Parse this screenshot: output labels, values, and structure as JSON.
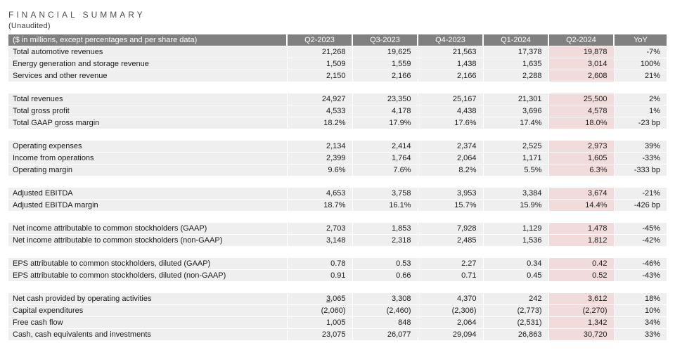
{
  "title": "FINANCIAL SUMMARY",
  "subtitle": "(Unaudited)",
  "colors": {
    "header_bg": "#808080",
    "header_text": "#ffffff",
    "row_bg": "#efefef",
    "highlight_bg": "#f2dcdb",
    "title_text": "#4f4f4f",
    "body_text": "#1a1a1a"
  },
  "table": {
    "label_header": "($ in millions, except percentages and per share data)",
    "columns": [
      "Q2-2023",
      "Q3-2023",
      "Q4-2023",
      "Q1-2024",
      "Q2-2024",
      "YoY"
    ],
    "highlight_column": "Q2-2024",
    "sections": [
      {
        "rows": [
          {
            "label": "Total automotive revenues",
            "values": [
              "21,268",
              "19,625",
              "21,563",
              "17,378",
              "19,878",
              "-7%"
            ]
          },
          {
            "label": "Energy generation and storage revenue",
            "values": [
              "1,509",
              "1,559",
              "1,438",
              "1,635",
              "3,014",
              "100%"
            ]
          },
          {
            "label": "Services and other revenue",
            "values": [
              "2,150",
              "2,166",
              "2,166",
              "2,288",
              "2,608",
              "21%"
            ]
          }
        ]
      },
      {
        "rows": [
          {
            "label": "Total revenues",
            "values": [
              "24,927",
              "23,350",
              "25,167",
              "21,301",
              "25,500",
              "2%"
            ]
          },
          {
            "label": "Total gross profit",
            "values": [
              "4,533",
              "4,178",
              "4,438",
              "3,696",
              "4,578",
              "1%"
            ]
          },
          {
            "label": "Total GAAP gross margin",
            "values": [
              "18.2%",
              "17.9%",
              "17.6%",
              "17.4%",
              "18.0%",
              "-23 bp"
            ]
          }
        ]
      },
      {
        "rows": [
          {
            "label": "Operating expenses",
            "values": [
              "2,134",
              "2,414",
              "2,374",
              "2,525",
              "2,973",
              "39%"
            ]
          },
          {
            "label": "Income from operations",
            "values": [
              "2,399",
              "1,764",
              "2,064",
              "1,171",
              "1,605",
              "-33%"
            ]
          },
          {
            "label": "Operating margin",
            "values": [
              "9.6%",
              "7.6%",
              "8.2%",
              "5.5%",
              "6.3%",
              "-333 bp"
            ]
          }
        ]
      },
      {
        "rows": [
          {
            "label": "Adjusted EBITDA",
            "values": [
              "4,653",
              "3,758",
              "3,953",
              "3,384",
              "3,674",
              "-21%"
            ]
          },
          {
            "label": "Adjusted EBITDA margin",
            "values": [
              "18.7%",
              "16.1%",
              "15.7%",
              "15.9%",
              "14.4%",
              "-426 bp"
            ]
          }
        ]
      },
      {
        "rows": [
          {
            "label": "Net income attributable to common stockholders (GAAP)",
            "values": [
              "2,703",
              "1,853",
              "7,928",
              "1,129",
              "1,478",
              "-45%"
            ]
          },
          {
            "label": "Net income attributable to common stockholders (non-GAAP)",
            "values": [
              "3,148",
              "2,318",
              "2,485",
              "1,536",
              "1,812",
              "-42%"
            ]
          }
        ]
      },
      {
        "rows": [
          {
            "label": "EPS attributable to common stockholders, diluted (GAAP)",
            "values": [
              "0.78",
              "0.53",
              "2.27",
              "0.34",
              "0.42",
              "-46%"
            ]
          },
          {
            "label": "EPS attributable to common stockholders, diluted (non-GAAP)",
            "values": [
              "0.91",
              "0.66",
              "0.71",
              "0.45",
              "0.52",
              "-43%"
            ]
          }
        ]
      },
      {
        "rows": [
          {
            "label": "Net cash provided by operating activities",
            "values": [
              "3,065",
              "3,308",
              "4,370",
              "242",
              "3,612",
              "18%"
            ],
            "underline_first_char_col": 0
          },
          {
            "label": "Capital expenditures",
            "values": [
              "(2,060)",
              "(2,460)",
              "(2,306)",
              "(2,773)",
              "(2,270)",
              "10%"
            ]
          },
          {
            "label": "Free cash flow",
            "values": [
              "1,005",
              "848",
              "2,064",
              "(2,531)",
              "1,342",
              "34%"
            ]
          },
          {
            "label": "Cash, cash equivalents and investments",
            "values": [
              "23,075",
              "26,077",
              "29,094",
              "26,863",
              "30,720",
              "33%"
            ]
          }
        ]
      }
    ]
  }
}
